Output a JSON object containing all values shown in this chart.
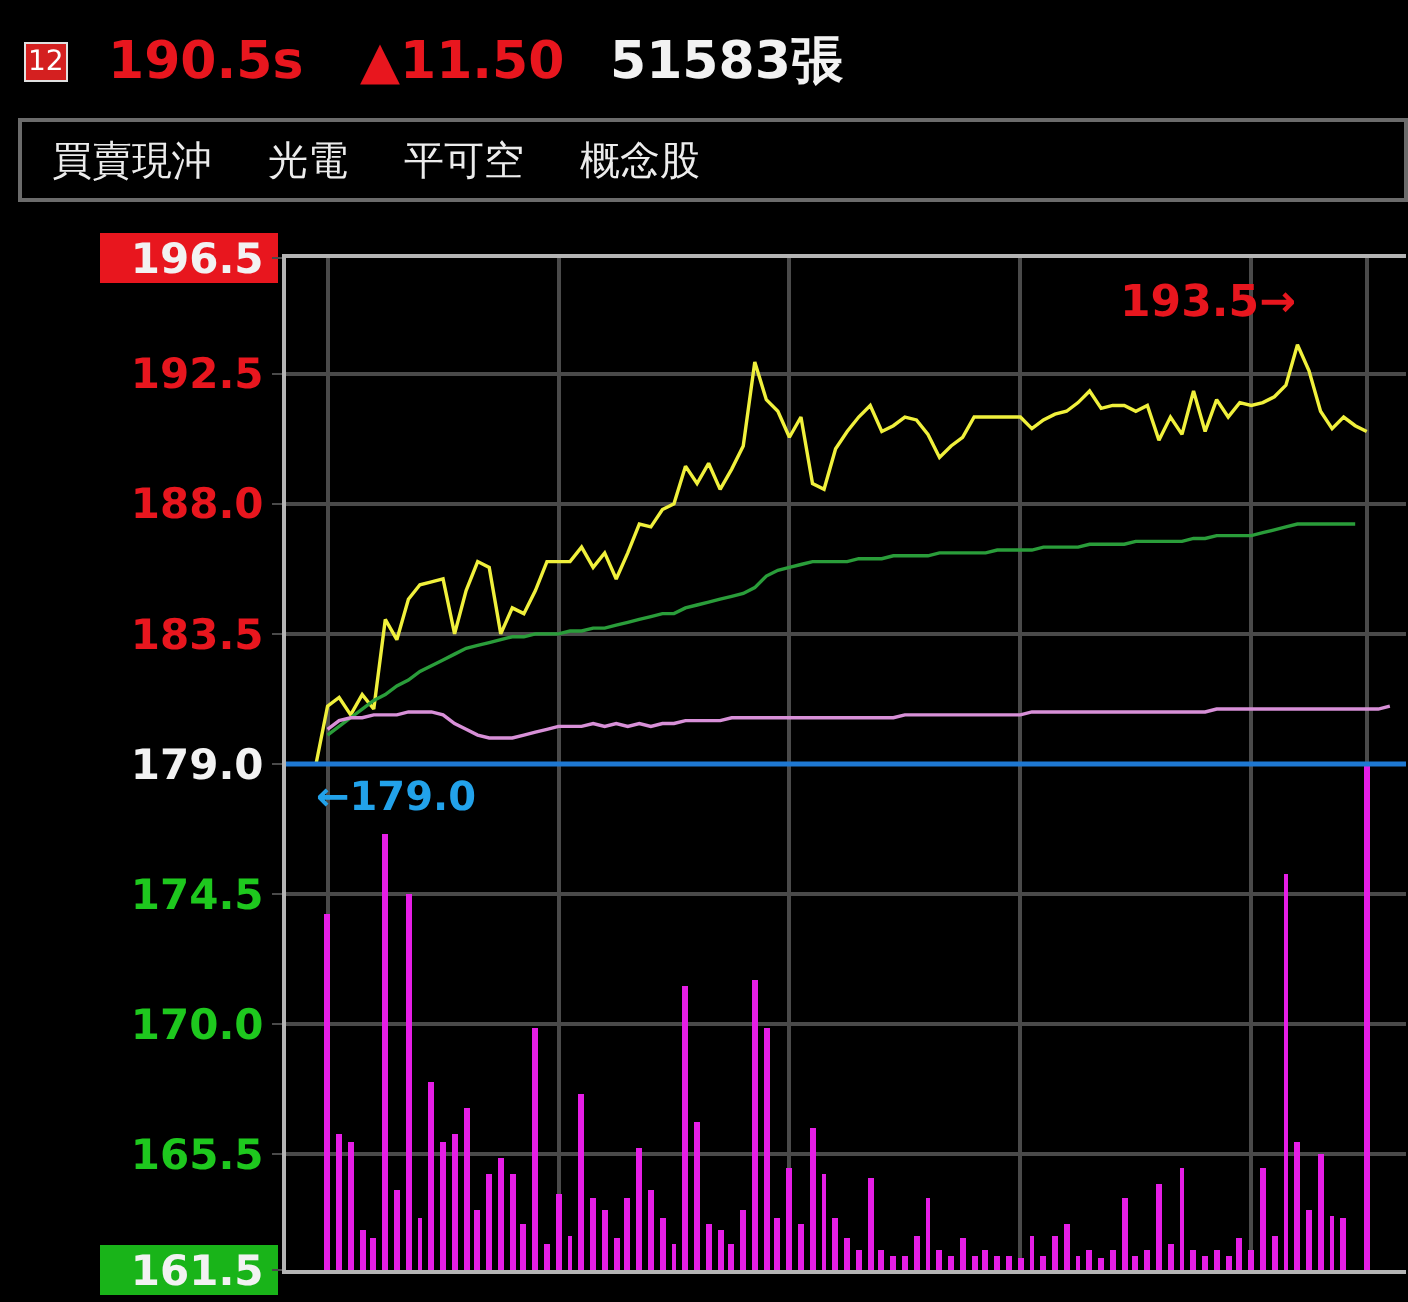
{
  "chart_data": {
    "type": "line",
    "title": "12 190.5s ▲11.50 51583張",
    "subtitle": "買賣現沖 光電 平可空 概念股",
    "categories": [
      null,
      null,
      null,
      null,
      null,
      null,
      null,
      null,
      null,
      null,
      null,
      null,
      null,
      null,
      null,
      null,
      null,
      null,
      null,
      null,
      null,
      null,
      null,
      null,
      null,
      null,
      null,
      null,
      null,
      null,
      null,
      null,
      null,
      null,
      null,
      null,
      null,
      null,
      null,
      null,
      null,
      null,
      null,
      null,
      null,
      null,
      null,
      null,
      null,
      null,
      null,
      null,
      null,
      null,
      null,
      null,
      null,
      null,
      null,
      null,
      null,
      null,
      null,
      null,
      null,
      null,
      null,
      null,
      null,
      null,
      null,
      null,
      null,
      null,
      null,
      null,
      null,
      null,
      null,
      null,
      null,
      null,
      null,
      null,
      null,
      null,
      null,
      null,
      null,
      null,
      null,
      null,
      null,
      null,
      null,
      null
    ],
    "series": [
      {
        "type": "bar",
        "color": "#e61ee6",
        "base": [
          null,
          null,
          null,
          161.5,
          161.5,
          161.5,
          161.5,
          161.5,
          161.5,
          161.5,
          161.5,
          161.5,
          161.5,
          161.5,
          161.5,
          161.5,
          161.5,
          161.5,
          161.5,
          161.5,
          161.5,
          161.5,
          161.5,
          161.5,
          161.5,
          161.5,
          161.5,
          161.5,
          161.5,
          161.5,
          161.5,
          161.5,
          161.5,
          161.5,
          161.5,
          161.5,
          161.5,
          161.5,
          161.5,
          161.5,
          161.5,
          161.5,
          161.5,
          161.5,
          161.5,
          161.5,
          161.5,
          161.5,
          161.5,
          161.5,
          161.5,
          161.5,
          161.5,
          161.5,
          161.5,
          161.5,
          161.5,
          161.5,
          161.5,
          161.5,
          161.5,
          161.5,
          161.5,
          161.5,
          161.5,
          161.5,
          161.5,
          161.5,
          161.5,
          161.5,
          161.5,
          161.5,
          161.5,
          161.5,
          161.5,
          161.5,
          161.5,
          161.5,
          161.5,
          161.5,
          161.5,
          161.5,
          161.5,
          161.5,
          161.5,
          161.5,
          161.5,
          161.5,
          161.5,
          161.5,
          161.5,
          161.5,
          null,
          161.5,
          null,
          null
        ],
        "values": [
          null,
          null,
          null,
          12.3,
          4.7,
          4.4,
          1.4,
          1.1,
          15.1,
          2.8,
          13.0,
          1.8,
          6.5,
          4.4,
          4.7,
          5.6,
          2.1,
          3.3,
          3.9,
          3.3,
          1.6,
          8.4,
          0.9,
          2.6,
          1.2,
          6.1,
          2.5,
          2.1,
          1.1,
          2.5,
          4.2,
          2.8,
          1.8,
          0.9,
          9.8,
          5.1,
          1.6,
          1.4,
          0.9,
          2.1,
          10.0,
          8.4,
          1.8,
          3.5,
          1.6,
          4.9,
          3.3,
          1.8,
          1.1,
          0.7,
          3.2,
          0.7,
          0.5,
          0.5,
          1.2,
          2.5,
          0.7,
          0.5,
          1.1,
          0.5,
          0.7,
          0.5,
          0.5,
          0.4,
          1.2,
          0.5,
          1.2,
          1.6,
          0.5,
          0.7,
          0.4,
          0.7,
          2.5,
          0.5,
          0.7,
          3.0,
          0.9,
          3.5,
          0.7,
          0.5,
          0.7,
          0.5,
          1.1,
          0.7,
          3.5,
          1.2,
          13.7,
          4.4,
          2.1,
          4.0,
          1.9,
          1.8,
          null,
          17.5,
          null,
          null
        ]
      },
      {
        "color": "#f0f03c",
        "values": [
          179.0,
          179.0,
          179.0,
          181.0,
          181.3,
          180.7,
          181.4,
          180.9,
          184.0,
          183.3,
          184.7,
          185.2,
          185.3,
          185.4,
          183.5,
          185.0,
          186.0,
          185.8,
          183.5,
          184.4,
          184.2,
          185.0,
          186.0,
          186.0,
          186.0,
          186.5,
          185.8,
          186.3,
          185.4,
          186.3,
          187.3,
          187.2,
          187.8,
          188.0,
          189.3,
          188.7,
          189.4,
          188.5,
          189.2,
          190.0,
          192.9,
          191.6,
          191.2,
          190.3,
          191.0,
          188.7,
          188.5,
          189.9,
          190.5,
          191.0,
          191.4,
          190.5,
          190.7,
          191.0,
          190.9,
          190.4,
          189.6,
          190.0,
          190.3,
          191.0,
          191.0,
          191.0,
          191.0,
          191.0,
          190.6,
          190.9,
          191.1,
          191.2,
          191.5,
          191.9,
          191.3,
          191.4,
          191.4,
          191.2,
          191.4,
          190.2,
          191.0,
          190.4,
          191.9,
          190.5,
          191.6,
          191.0,
          191.5,
          191.4,
          191.5,
          191.7,
          192.1,
          193.5,
          192.6,
          191.2,
          190.6,
          191.0,
          190.7,
          190.5,
          null,
          null
        ]
      },
      {
        "color": "#2a9d3a",
        "values": [
          null,
          null,
          null,
          180.0,
          180.3,
          180.6,
          180.9,
          181.2,
          181.4,
          181.7,
          181.9,
          182.2,
          182.4,
          182.6,
          182.8,
          183.0,
          183.1,
          183.2,
          183.3,
          183.4,
          183.4,
          183.5,
          183.5,
          183.5,
          183.6,
          183.6,
          183.7,
          183.7,
          183.8,
          183.9,
          184.0,
          184.1,
          184.2,
          184.2,
          184.4,
          184.5,
          184.6,
          184.7,
          184.8,
          184.9,
          185.1,
          185.5,
          185.7,
          185.8,
          185.9,
          186.0,
          186.0,
          186.0,
          186.0,
          186.1,
          186.1,
          186.1,
          186.2,
          186.2,
          186.2,
          186.2,
          186.3,
          186.3,
          186.3,
          186.3,
          186.3,
          186.4,
          186.4,
          186.4,
          186.4,
          186.5,
          186.5,
          186.5,
          186.5,
          186.6,
          186.6,
          186.6,
          186.6,
          186.7,
          186.7,
          186.7,
          186.7,
          186.7,
          186.8,
          186.8,
          186.9,
          186.9,
          186.9,
          186.9,
          187.0,
          187.1,
          187.2,
          187.3,
          187.3,
          187.3,
          187.3,
          187.3,
          187.3,
          null,
          null,
          null
        ]
      },
      {
        "color": "#d890d8",
        "values": [
          null,
          null,
          null,
          180.2,
          180.5,
          180.6,
          180.6,
          180.7,
          180.7,
          180.7,
          180.8,
          180.8,
          180.8,
          180.7,
          180.4,
          180.2,
          180.0,
          179.9,
          179.9,
          179.9,
          180.0,
          180.1,
          180.2,
          180.3,
          180.3,
          180.3,
          180.4,
          180.3,
          180.4,
          180.3,
          180.4,
          180.3,
          180.4,
          180.4,
          180.5,
          180.5,
          180.5,
          180.5,
          180.6,
          180.6,
          180.6,
          180.6,
          180.6,
          180.6,
          180.6,
          180.6,
          180.6,
          180.6,
          180.6,
          180.6,
          180.6,
          180.6,
          180.6,
          180.7,
          180.7,
          180.7,
          180.7,
          180.7,
          180.7,
          180.7,
          180.7,
          180.7,
          180.7,
          180.7,
          180.8,
          180.8,
          180.8,
          180.8,
          180.8,
          180.8,
          180.8,
          180.8,
          180.8,
          180.8,
          180.8,
          180.8,
          180.8,
          180.8,
          180.8,
          180.8,
          180.9,
          180.9,
          180.9,
          180.9,
          180.9,
          180.9,
          180.9,
          180.9,
          180.9,
          180.9,
          180.9,
          180.9,
          180.9,
          180.9,
          180.9,
          181.0
        ]
      }
    ],
    "ylim": [
      161.5,
      196.5
    ],
    "yticks": [
      196.5,
      192.5,
      {
        "value": 188.0,
        "label": "188.0"
      },
      183.5,
      {
        "value": 179.0,
        "label": "179.0"
      },
      174.5,
      {
        "value": 170.0,
        "label": "170.0"
      },
      165.5,
      161.5
    ],
    "tick_labels": "y",
    "grid": true,
    "ref_lines": [
      {
        "axis": "y",
        "value": 179.0,
        "label": "←179.0",
        "color": "#1e78d2"
      }
    ],
    "annotations": [
      "193.5→"
    ]
  }
}
